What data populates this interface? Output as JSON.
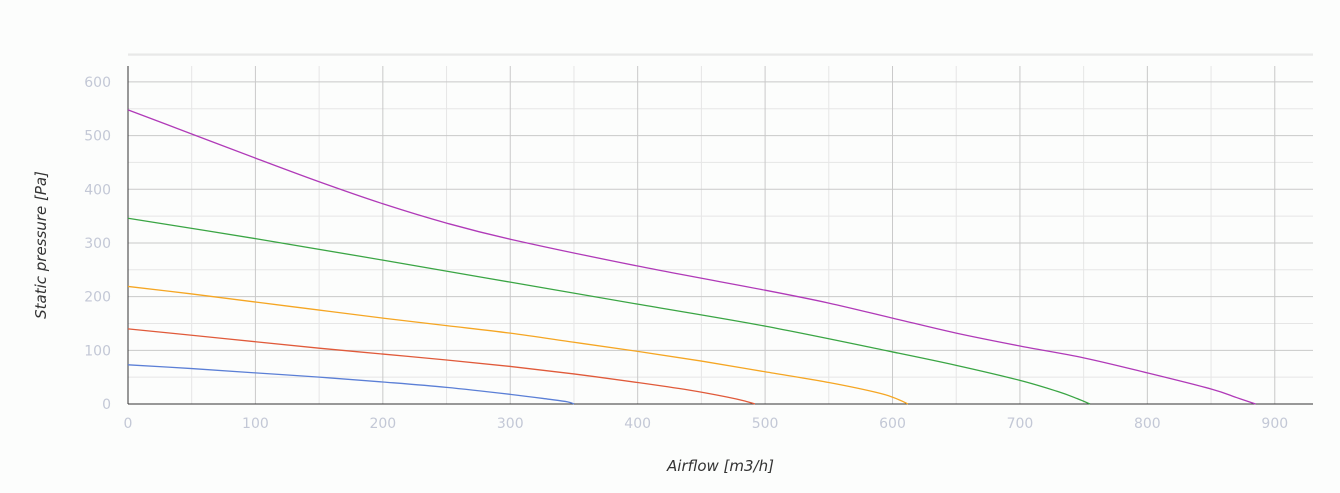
{
  "chart_data": {
    "type": "line",
    "title": "",
    "xlabel": "Airflow [m3/h]",
    "ylabel": "Static pressure [Pa]",
    "xlim": [
      0,
      930
    ],
    "ylim": [
      0,
      600
    ],
    "x_ticks": [
      0,
      100,
      200,
      300,
      400,
      500,
      600,
      700,
      800,
      900
    ],
    "y_ticks": [
      0,
      100,
      200,
      300,
      400,
      500,
      600
    ],
    "grid": true,
    "legend": "none",
    "series": [
      {
        "color": "#5b7fd6",
        "points": [
          [
            0,
            73
          ],
          [
            50,
            66
          ],
          [
            100,
            58
          ],
          [
            150,
            50
          ],
          [
            200,
            41
          ],
          [
            250,
            31
          ],
          [
            300,
            18
          ],
          [
            330,
            9
          ],
          [
            345,
            4
          ],
          [
            350,
            0
          ]
        ]
      },
      {
        "color": "#e05a3a",
        "points": [
          [
            0,
            140
          ],
          [
            50,
            128
          ],
          [
            100,
            116
          ],
          [
            150,
            104
          ],
          [
            200,
            93
          ],
          [
            250,
            82
          ],
          [
            300,
            70
          ],
          [
            350,
            56
          ],
          [
            400,
            40
          ],
          [
            440,
            26
          ],
          [
            470,
            13
          ],
          [
            485,
            5
          ],
          [
            492,
            0
          ]
        ]
      },
      {
        "color": "#f5a623",
        "points": [
          [
            0,
            219
          ],
          [
            50,
            205
          ],
          [
            100,
            190
          ],
          [
            150,
            175
          ],
          [
            200,
            160
          ],
          [
            250,
            146
          ],
          [
            300,
            132
          ],
          [
            350,
            115
          ],
          [
            400,
            98
          ],
          [
            450,
            80
          ],
          [
            500,
            60
          ],
          [
            550,
            40
          ],
          [
            590,
            20
          ],
          [
            605,
            8
          ],
          [
            612,
            0
          ]
        ]
      },
      {
        "color": "#3aa544",
        "points": [
          [
            0,
            346
          ],
          [
            100,
            308
          ],
          [
            200,
            268
          ],
          [
            300,
            227
          ],
          [
            400,
            186
          ],
          [
            500,
            145
          ],
          [
            600,
            97
          ],
          [
            650,
            72
          ],
          [
            700,
            44
          ],
          [
            730,
            23
          ],
          [
            745,
            10
          ],
          [
            755,
            0
          ]
        ]
      },
      {
        "color": "#b03ab8",
        "points": [
          [
            0,
            548
          ],
          [
            50,
            503
          ],
          [
            100,
            458
          ],
          [
            150,
            414
          ],
          [
            200,
            373
          ],
          [
            250,
            337
          ],
          [
            300,
            307
          ],
          [
            400,
            257
          ],
          [
            500,
            212
          ],
          [
            550,
            188
          ],
          [
            600,
            160
          ],
          [
            650,
            132
          ],
          [
            700,
            108
          ],
          [
            750,
            86
          ],
          [
            800,
            58
          ],
          [
            850,
            28
          ],
          [
            870,
            12
          ],
          [
            885,
            0
          ]
        ]
      }
    ]
  }
}
